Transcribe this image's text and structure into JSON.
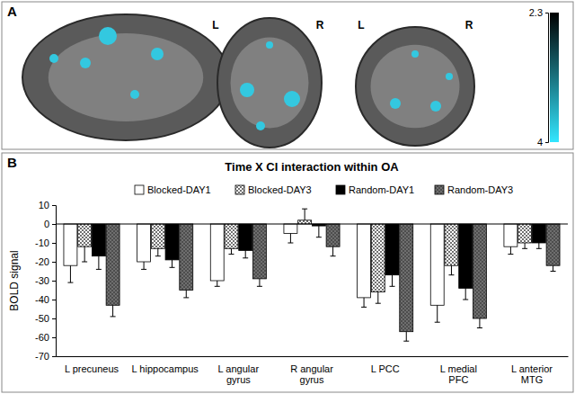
{
  "panel_a": {
    "label": "A",
    "side_labels": [
      "L",
      "R",
      "L",
      "R"
    ],
    "colorbar": {
      "range": [
        2.3,
        4
      ],
      "ticks": [
        2.3,
        4
      ]
    }
  },
  "chart_data": {
    "type": "bar",
    "annotations": [
      "B"
    ],
    "title": "Time X CI interaction within OA",
    "y_label": "BOLD signal",
    "categories": [
      "L precuneus",
      "L hippocampus",
      "L angular gyrus",
      "R angular gyrus",
      "L PCC",
      "L medial PFC",
      "L anterior MTG"
    ],
    "series": [
      {
        "name": "Blocked-DAY1",
        "color": "#ffffff",
        "values": [
          -22,
          -20,
          -30,
          -5,
          -39,
          -43,
          -12
        ],
        "errors": [
          9,
          4,
          3,
          5,
          5,
          9,
          4
        ]
      },
      {
        "name": "Blocked-DAY3",
        "color": "#ffffff",
        "values": [
          -12,
          -13,
          -13,
          2,
          -36,
          -22,
          -10
        ],
        "errors": [
          8,
          4,
          3,
          6,
          6,
          5,
          3
        ]
      },
      {
        "name": "Random-DAY1",
        "color": "#000000",
        "values": [
          -17,
          -19,
          -14,
          -1,
          -27,
          -34,
          -10
        ],
        "errors": [
          7,
          4,
          4,
          6,
          6,
          6,
          3
        ]
      },
      {
        "name": "Random-DAY3",
        "color": "#4d4d4d",
        "values": [
          -43,
          -35,
          -29,
          -12,
          -57,
          -50,
          -22
        ],
        "errors": [
          6,
          4,
          4,
          5,
          5,
          5,
          3
        ]
      }
    ],
    "ylim": [
      -70,
      10
    ],
    "yticks": [
      -70,
      -60,
      -50,
      -40,
      -30,
      -20,
      -10,
      0,
      10
    ],
    "legend": "top"
  }
}
